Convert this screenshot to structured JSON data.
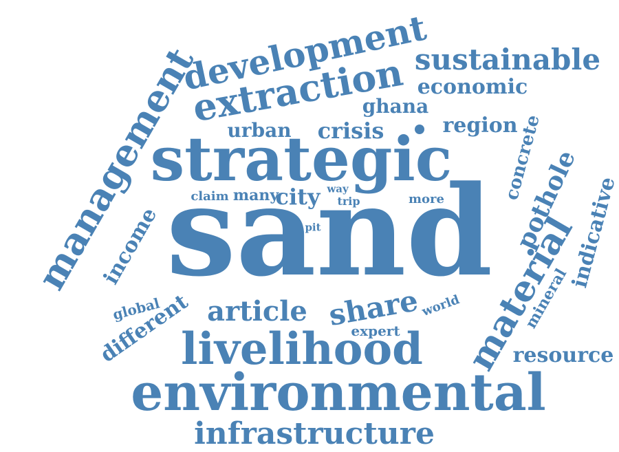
{
  "color": "#4a82b5",
  "words": [
    "sand",
    "strategic",
    "environmental",
    "livelihood",
    "management",
    "development",
    "extraction",
    "sustainable",
    "infrastructure",
    "material",
    "article",
    "share",
    "economic",
    "ghana",
    "region",
    "urban",
    "crisis",
    "concrete",
    "pothole",
    "indicative",
    "income",
    "claim",
    "many",
    "city",
    "way",
    "trip",
    "more",
    "pit",
    "global",
    "different",
    "expert",
    "world",
    "mineral",
    "resource"
  ]
}
